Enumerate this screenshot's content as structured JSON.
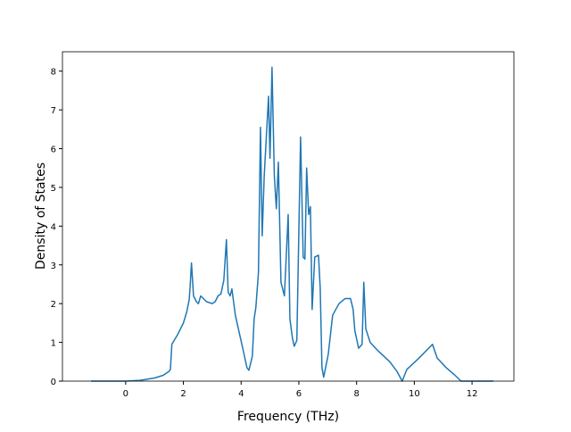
{
  "chart_data": {
    "type": "line",
    "xlabel": "Frequency (THz)",
    "ylabel": "Density of States",
    "x": [
      -1.2,
      0,
      0.5,
      1.0,
      1.3,
      1.5,
      1.55,
      1.6,
      1.8,
      2.0,
      2.12,
      2.2,
      2.23,
      2.28,
      2.35,
      2.45,
      2.52,
      2.6,
      2.8,
      3.0,
      3.1,
      3.2,
      3.3,
      3.4,
      3.49,
      3.55,
      3.62,
      3.68,
      3.8,
      3.95,
      4.1,
      4.2,
      4.27,
      4.39,
      4.45,
      4.51,
      4.6,
      4.67,
      4.73,
      4.8,
      4.95,
      5.0,
      5.07,
      5.15,
      5.22,
      5.29,
      5.38,
      5.5,
      5.63,
      5.69,
      5.78,
      5.84,
      5.93,
      6.06,
      6.15,
      6.21,
      6.27,
      6.34,
      6.4,
      6.46,
      6.55,
      6.68,
      6.74,
      6.8,
      6.86,
      7.02,
      7.17,
      7.39,
      7.6,
      7.79,
      7.88,
      7.94,
      8.07,
      8.19,
      8.25,
      8.32,
      8.47,
      8.72,
      9.15,
      9.4,
      9.58,
      9.74,
      10.17,
      10.63,
      10.79,
      11.1,
      11.41,
      11.62,
      12.74
    ],
    "series": [
      {
        "name": "DOS",
        "color": "#1f77b4",
        "values": [
          0,
          0,
          0.02,
          0.08,
          0.15,
          0.25,
          0.3,
          0.95,
          1.2,
          1.5,
          1.8,
          2.1,
          2.4,
          3.05,
          2.2,
          2.05,
          2.0,
          2.2,
          2.05,
          2.0,
          2.05,
          2.2,
          2.25,
          2.6,
          3.65,
          2.3,
          2.2,
          2.38,
          1.7,
          1.2,
          0.7,
          0.35,
          0.28,
          0.65,
          1.6,
          1.9,
          2.8,
          6.55,
          3.75,
          5.3,
          7.35,
          5.75,
          8.1,
          5.3,
          4.45,
          5.65,
          2.55,
          2.2,
          4.3,
          1.6,
          1.1,
          0.9,
          1.05,
          6.3,
          3.2,
          3.15,
          5.5,
          4.3,
          4.5,
          1.85,
          3.2,
          3.25,
          2.4,
          0.35,
          0.1,
          0.7,
          1.7,
          2.0,
          2.13,
          2.13,
          1.85,
          1.3,
          0.85,
          0.95,
          2.55,
          1.35,
          1.0,
          0.8,
          0.5,
          0.25,
          0,
          0.3,
          0.6,
          0.95,
          0.6,
          0.35,
          0.15,
          0,
          0
        ]
      }
    ],
    "xlim": [
      -2.19,
      13.45
    ],
    "ylim": [
      0,
      8.5
    ],
    "xticks": [
      0,
      2,
      4,
      6,
      8,
      10,
      12
    ],
    "yticks": [
      0,
      1,
      2,
      3,
      4,
      5,
      6,
      7,
      8
    ]
  }
}
